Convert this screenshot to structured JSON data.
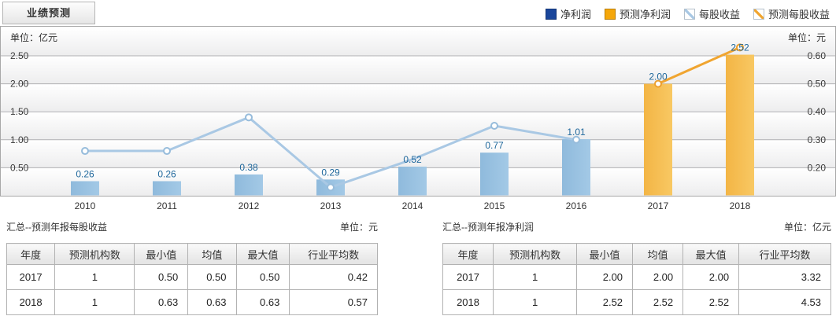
{
  "tab": {
    "label": "业绩预测"
  },
  "legend": [
    {
      "label": "净利润",
      "type": "bar",
      "color": "#1a469b"
    },
    {
      "label": "预测净利润",
      "type": "bar",
      "color": "#f5a70a"
    },
    {
      "label": "每股收益",
      "type": "line",
      "color": "#a9c8e4"
    },
    {
      "label": "预测每股收益",
      "type": "line",
      "color": "#f0a530"
    }
  ],
  "chart_data": {
    "type": "bar",
    "subtype": "dual-axis bar+line combo",
    "categories": [
      "2010",
      "2011",
      "2012",
      "2013",
      "2014",
      "2015",
      "2016",
      "2017",
      "2018"
    ],
    "series": [
      {
        "name": "净利润",
        "kind": "bar",
        "axis": "left",
        "unit": "亿元",
        "values": [
          0.26,
          0.26,
          0.38,
          0.29,
          0.52,
          0.77,
          1.01,
          null,
          null
        ]
      },
      {
        "name": "预测净利润",
        "kind": "bar",
        "axis": "left",
        "unit": "亿元",
        "values": [
          null,
          null,
          null,
          null,
          null,
          null,
          null,
          2.0,
          2.52
        ]
      },
      {
        "name": "每股收益",
        "kind": "line",
        "axis": "right",
        "unit": "元",
        "values": [
          0.26,
          0.26,
          0.38,
          0.13,
          0.23,
          0.35,
          0.3,
          null,
          null
        ],
        "markers": [
          true,
          true,
          true,
          true,
          false,
          true,
          true,
          false,
          false
        ]
      },
      {
        "name": "预测每股收益",
        "kind": "line",
        "axis": "right",
        "unit": "元",
        "values": [
          null,
          null,
          null,
          null,
          null,
          null,
          null,
          0.5,
          0.63
        ],
        "markers": [
          false,
          false,
          false,
          false,
          false,
          false,
          false,
          true,
          true
        ]
      }
    ],
    "left_axis": {
      "unit_label": "单位：亿元",
      "ticks": [
        0.5,
        1.0,
        1.5,
        2.0,
        2.5
      ],
      "range": [
        0,
        3.02
      ]
    },
    "right_axis": {
      "unit_label": "单位：元",
      "ticks": [
        0.2,
        0.3,
        0.4,
        0.5,
        0.6
      ],
      "range": [
        0.1,
        0.704
      ]
    },
    "grid": true,
    "legend_position": "top-right",
    "colors": {
      "bar_blue": [
        "#8fbadc",
        "#a3c9e6"
      ],
      "bar_orange": [
        "#f3b545",
        "#f8c863"
      ],
      "line_blue": "#a9c8e4",
      "line_blue_marker": "#97bcdb",
      "line_orange": "#f0a530",
      "line_orange_marker": "#ec9f2d",
      "value_label": "#20689c",
      "gridline": "#b0b0b3",
      "axis_text": "#3a3a3a",
      "band_top": "#ffffff",
      "band_bottom": "#ededee"
    }
  },
  "sections": [
    {
      "title": "汇总--预测年报每股收益",
      "unit": "单位：元",
      "headers": [
        "年度",
        "预测机构数",
        "最小值",
        "均值",
        "最大值",
        "行业平均数"
      ],
      "rows": [
        [
          "2017",
          "1",
          "0.50",
          "0.50",
          "0.50",
          "0.42"
        ],
        [
          "2018",
          "1",
          "0.63",
          "0.63",
          "0.63",
          "0.57"
        ]
      ]
    },
    {
      "title": "汇总--预测年报净利润",
      "unit": "单位：亿元",
      "headers": [
        "年度",
        "预测机构数",
        "最小值",
        "均值",
        "最大值",
        "行业平均数"
      ],
      "rows": [
        [
          "2017",
          "1",
          "2.00",
          "2.00",
          "2.00",
          "3.32"
        ],
        [
          "2018",
          "1",
          "2.52",
          "2.52",
          "2.52",
          "4.53"
        ]
      ]
    }
  ]
}
